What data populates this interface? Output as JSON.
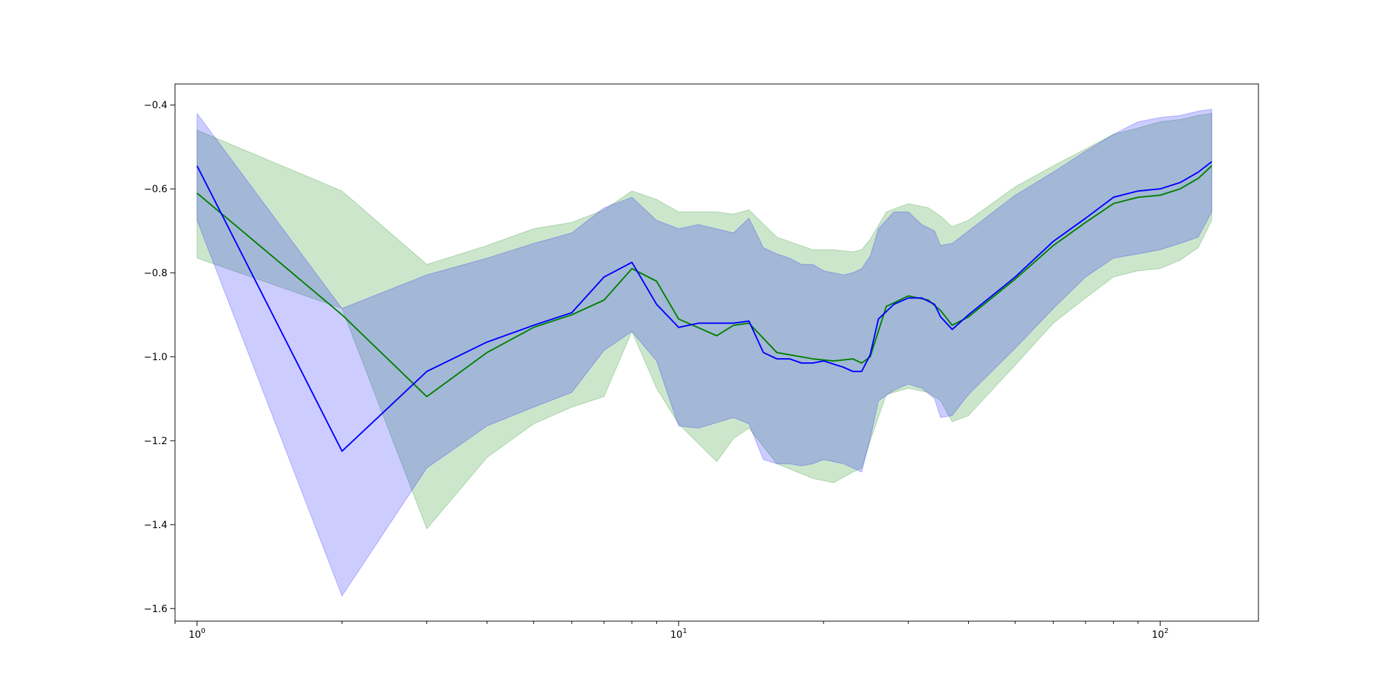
{
  "chart_data": {
    "type": "line",
    "title": "",
    "xlabel": "",
    "ylabel": "",
    "xscale": "log",
    "xlim": [
      0.9,
      160
    ],
    "ylim": [
      -1.63,
      -0.35
    ],
    "grid": false,
    "legend": "none",
    "xticks": [
      {
        "value": 1,
        "base": "10",
        "exp": "0"
      },
      {
        "value": 10,
        "base": "10",
        "exp": "1"
      },
      {
        "value": 100,
        "base": "10",
        "exp": "2"
      }
    ],
    "yticks": [
      {
        "value": -0.4,
        "label": "−0.4"
      },
      {
        "value": -0.6,
        "label": "−0.6"
      },
      {
        "value": -0.8,
        "label": "−0.8"
      },
      {
        "value": -1.0,
        "label": "−1.0"
      },
      {
        "value": -1.2,
        "label": "−1.2"
      },
      {
        "value": -1.4,
        "label": "−1.4"
      },
      {
        "value": -1.6,
        "label": "−1.6"
      }
    ],
    "series": [
      {
        "color": "#008000",
        "band_color": "#008000",
        "band_opacity": 0.2,
        "x": [
          1,
          2,
          3,
          4,
          5,
          6,
          7,
          8,
          9,
          10,
          12,
          13,
          14,
          16,
          19,
          21,
          23,
          24,
          25,
          27,
          30,
          33,
          35,
          37,
          40,
          50,
          60,
          70,
          80,
          90,
          100,
          110,
          120,
          128
        ],
        "y": [
          -0.61,
          -0.9,
          -1.095,
          -0.99,
          -0.93,
          -0.9,
          -0.865,
          -0.79,
          -0.82,
          -0.91,
          -0.95,
          -0.925,
          -0.92,
          -0.99,
          -1.005,
          -1.01,
          -1.005,
          -1.015,
          -1.0,
          -0.88,
          -0.855,
          -0.865,
          -0.89,
          -0.925,
          -0.905,
          -0.815,
          -0.735,
          -0.68,
          -0.635,
          -0.62,
          -0.615,
          -0.6,
          -0.575,
          -0.545
        ],
        "lower": [
          -0.765,
          -0.885,
          -1.41,
          -1.24,
          -1.16,
          -1.12,
          -1.095,
          -0.94,
          -1.075,
          -1.16,
          -1.25,
          -1.195,
          -1.17,
          -1.255,
          -1.29,
          -1.3,
          -1.275,
          -1.265,
          -1.2,
          -1.09,
          -1.075,
          -1.085,
          -1.105,
          -1.155,
          -1.14,
          -1.02,
          -0.92,
          -0.86,
          -0.81,
          -0.795,
          -0.79,
          -0.77,
          -0.74,
          -0.675
        ],
        "upper": [
          -0.46,
          -0.605,
          -0.78,
          -0.735,
          -0.695,
          -0.68,
          -0.65,
          -0.605,
          -0.625,
          -0.655,
          -0.655,
          -0.66,
          -0.65,
          -0.715,
          -0.745,
          -0.745,
          -0.75,
          -0.745,
          -0.72,
          -0.655,
          -0.635,
          -0.645,
          -0.665,
          -0.69,
          -0.675,
          -0.595,
          -0.545,
          -0.505,
          -0.47,
          -0.455,
          -0.44,
          -0.435,
          -0.425,
          -0.42
        ]
      },
      {
        "color": "#0000ff",
        "band_color": "#0000ff",
        "band_opacity": 0.2,
        "x": [
          1,
          2,
          3,
          4,
          5,
          6,
          7,
          8,
          9,
          10,
          11,
          13,
          14,
          15,
          16,
          17,
          18,
          19,
          20,
          22,
          23,
          24,
          25,
          26,
          28,
          30,
          32,
          34,
          35,
          37,
          40,
          50,
          60,
          70,
          80,
          90,
          100,
          110,
          120,
          128
        ],
        "y": [
          -0.545,
          -1.225,
          -1.035,
          -0.965,
          -0.925,
          -0.895,
          -0.81,
          -0.775,
          -0.875,
          -0.93,
          -0.92,
          -0.92,
          -0.915,
          -0.99,
          -1.005,
          -1.005,
          -1.015,
          -1.015,
          -1.01,
          -1.025,
          -1.035,
          -1.035,
          -0.995,
          -0.91,
          -0.875,
          -0.86,
          -0.86,
          -0.875,
          -0.905,
          -0.935,
          -0.9,
          -0.81,
          -0.725,
          -0.67,
          -0.62,
          -0.605,
          -0.6,
          -0.585,
          -0.56,
          -0.535
        ],
        "lower": [
          -0.675,
          -1.57,
          -1.265,
          -1.165,
          -1.12,
          -1.085,
          -0.985,
          -0.94,
          -1.01,
          -1.165,
          -1.17,
          -1.145,
          -1.16,
          -1.245,
          -1.255,
          -1.255,
          -1.26,
          -1.255,
          -1.245,
          -1.255,
          -1.265,
          -1.275,
          -1.195,
          -1.105,
          -1.08,
          -1.065,
          -1.075,
          -1.1,
          -1.145,
          -1.14,
          -1.09,
          -0.98,
          -0.885,
          -0.81,
          -0.765,
          -0.755,
          -0.745,
          -0.73,
          -0.715,
          -0.655
        ],
        "upper": [
          -0.42,
          -0.885,
          -0.805,
          -0.765,
          -0.73,
          -0.705,
          -0.645,
          -0.62,
          -0.675,
          -0.695,
          -0.685,
          -0.705,
          -0.67,
          -0.74,
          -0.755,
          -0.765,
          -0.78,
          -0.78,
          -0.795,
          -0.805,
          -0.8,
          -0.79,
          -0.76,
          -0.695,
          -0.655,
          -0.655,
          -0.685,
          -0.7,
          -0.735,
          -0.73,
          -0.7,
          -0.615,
          -0.56,
          -0.51,
          -0.47,
          -0.44,
          -0.43,
          -0.425,
          -0.415,
          -0.41
        ]
      }
    ]
  }
}
